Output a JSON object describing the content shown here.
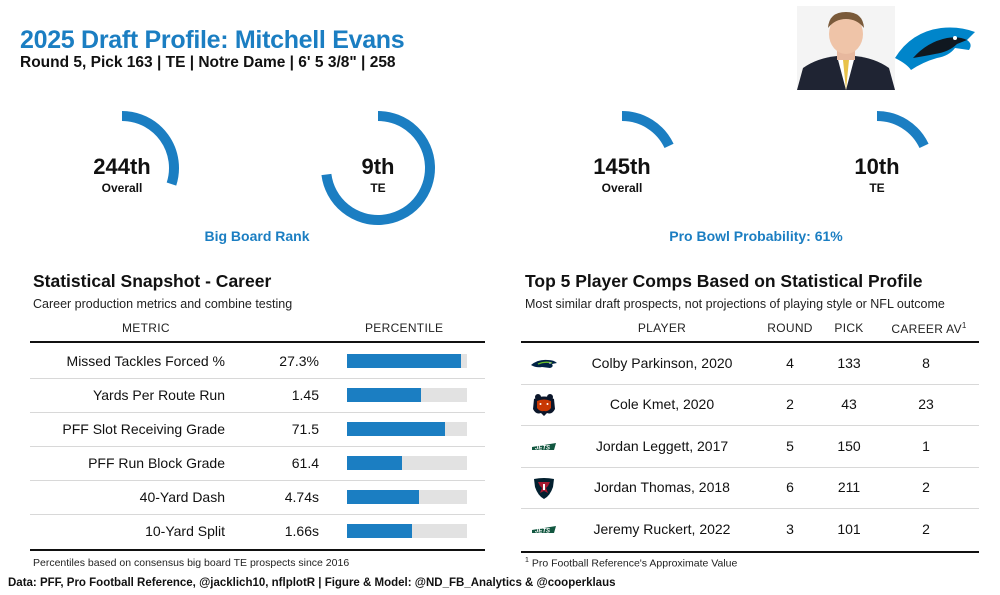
{
  "header": {
    "title": "2025 Draft Profile: Mitchell Evans",
    "subtitle": "Round 5, Pick 163 | TE | Notre Dame | 6' 5 3/8\" | 258"
  },
  "colors": {
    "accent": "#1b7ec2",
    "bar_bg": "#e2e2e2"
  },
  "gauges": {
    "big_board": {
      "caption": "Big Board Rank",
      "overall": {
        "value": "244th",
        "label": "Overall",
        "fill": 0.3
      },
      "position": {
        "value": "9th",
        "label": "TE",
        "fill": 0.73
      }
    },
    "pro_bowl": {
      "caption": "Pro Bowl Probability: 61%",
      "overall": {
        "value": "145th",
        "label": "Overall",
        "fill": 0.18
      },
      "position": {
        "value": "10th",
        "label": "TE",
        "fill": 0.18
      }
    }
  },
  "snapshot": {
    "title": "Statistical Snapshot - Career",
    "subtitle": "Career production metrics and combine testing",
    "col_metric": "METRIC",
    "col_percentile": "PERCENTILE",
    "footnote": "Percentiles based on consensus big board TE prospects since 2016"
  },
  "chart_data": {
    "type": "bar",
    "categories": [
      "Missed Tackles Forced %",
      "Yards Per Route Run",
      "PFF Slot Receiving Grade",
      "PFF Run Block Grade",
      "40-Yard Dash",
      "10-Yard Split"
    ],
    "value_labels": [
      "27.3%",
      "1.45",
      "71.5",
      "61.4",
      "4.74s",
      "1.66s"
    ],
    "values": [
      95,
      62,
      82,
      46,
      60,
      54
    ],
    "xlim": [
      0,
      100
    ]
  },
  "comps": {
    "title": "Top 5 Player Comps Based on Statistical Profile",
    "subtitle": "Most similar draft prospects, not projections of playing style or NFL outcome",
    "columns": {
      "player": "PLAYER",
      "round": "ROUND",
      "pick": "PICK",
      "career_av": "CAREER AV",
      "sup": "1"
    },
    "rows": [
      {
        "team_icon": "seahawks-logo-icon",
        "player": "Colby Parkinson, 2020",
        "round": "4",
        "pick": "133",
        "av": "8"
      },
      {
        "team_icon": "bears-logo-icon",
        "player": "Cole Kmet, 2020",
        "round": "2",
        "pick": "43",
        "av": "23"
      },
      {
        "team_icon": "jets-logo-icon",
        "player": "Jordan Leggett, 2017",
        "round": "5",
        "pick": "150",
        "av": "1"
      },
      {
        "team_icon": "texans-logo-icon",
        "player": "Jordan Thomas, 2018",
        "round": "6",
        "pick": "211",
        "av": "2"
      },
      {
        "team_icon": "jets-logo-icon",
        "player": "Jeremy Ruckert, 2022",
        "round": "3",
        "pick": "101",
        "av": "2"
      }
    ],
    "footnote_sup": "1",
    "footnote": "Pro Football Reference's Approximate Value"
  },
  "credit": "Data: PFF, Pro Football Reference, @jacklich10, nflplotR | Figure & Model: @ND_FB_Analytics & @cooperklaus"
}
